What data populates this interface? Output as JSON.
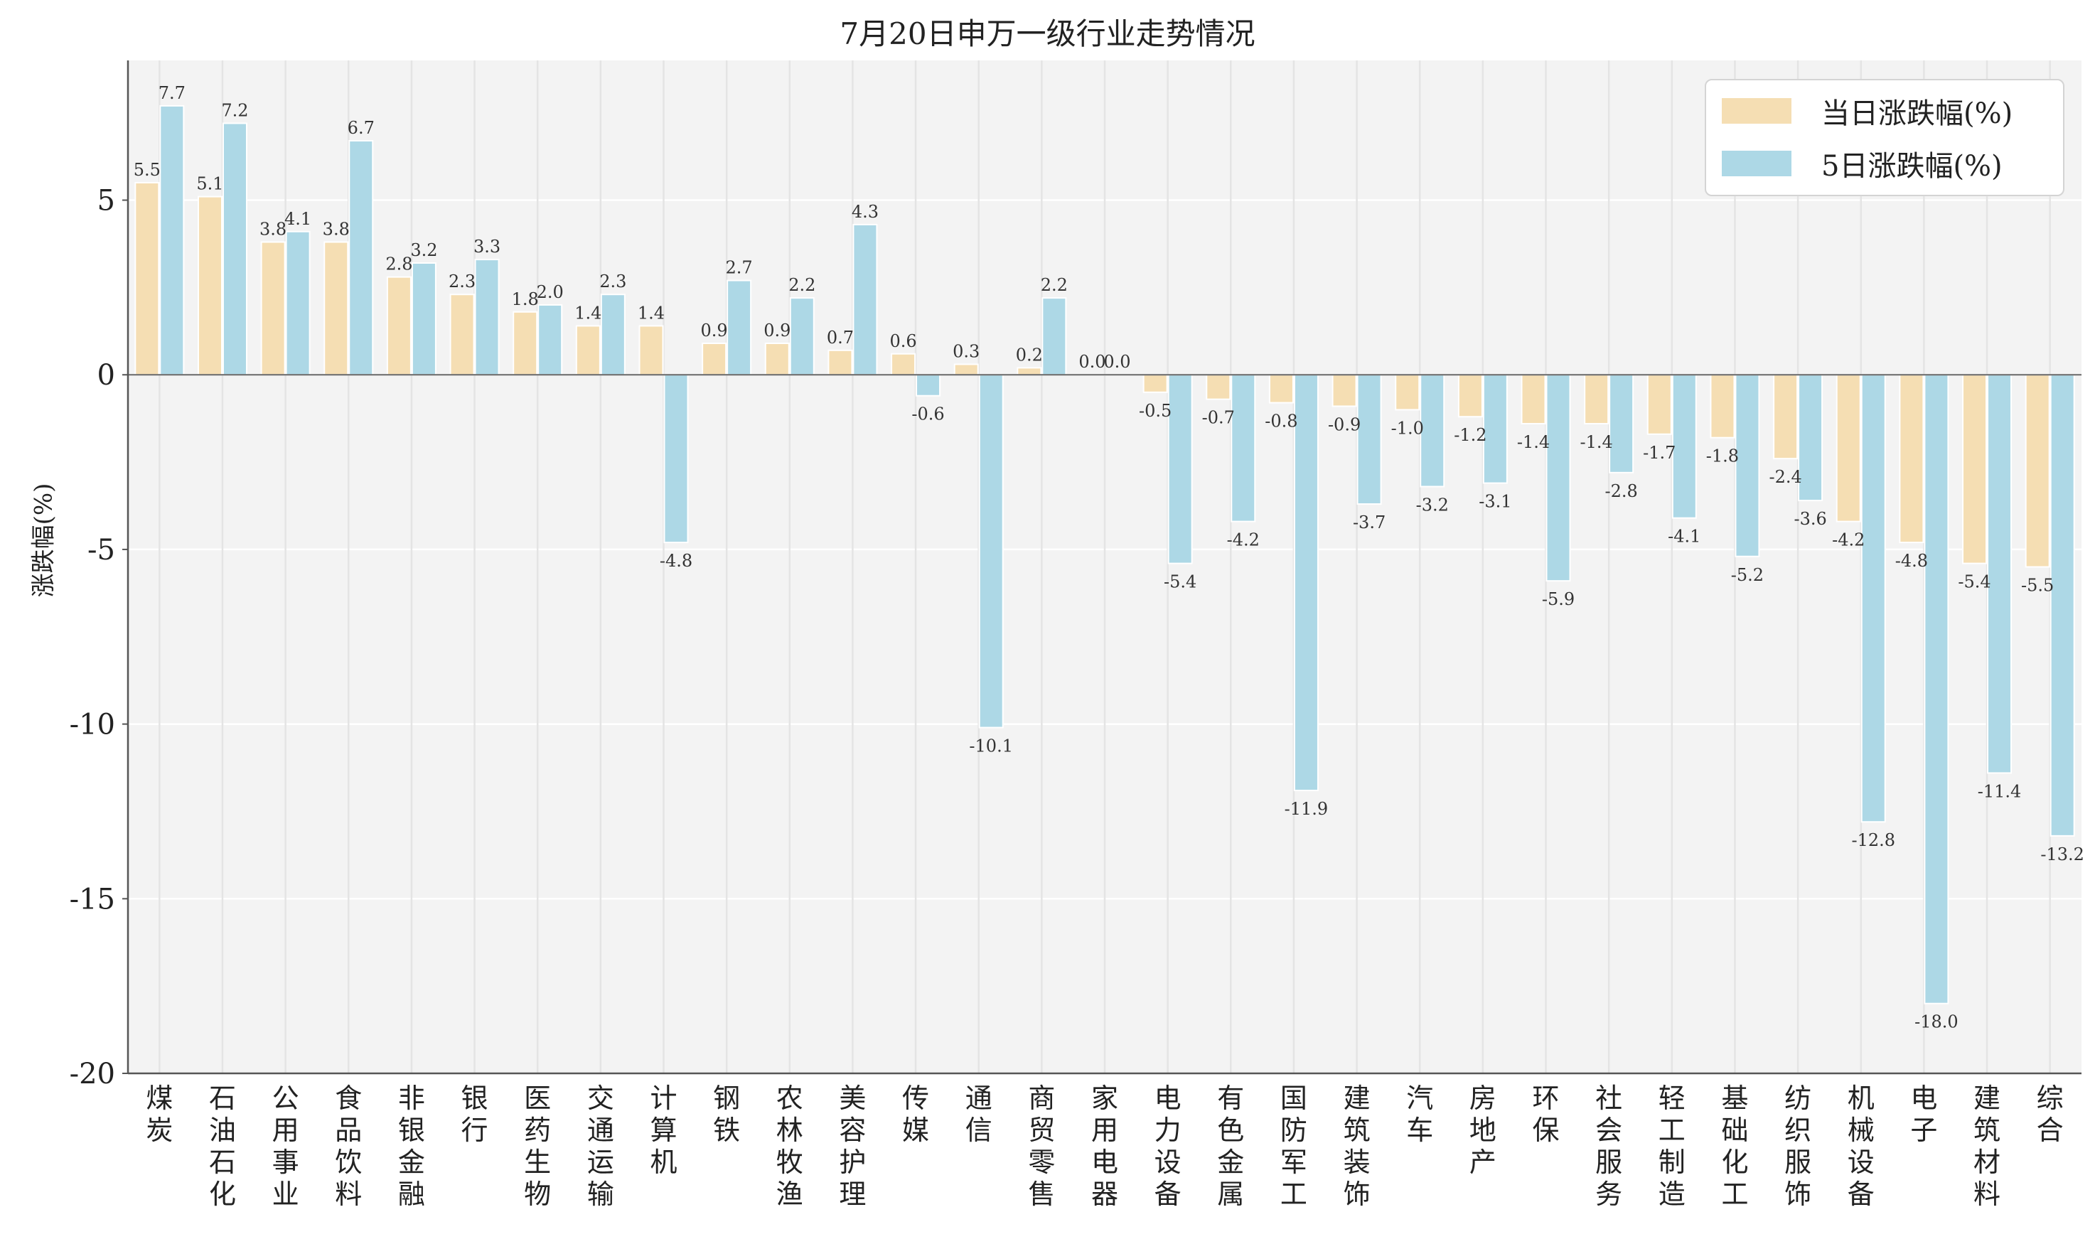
{
  "chart_data": {
    "type": "bar",
    "title": "7月20日申万一级行业走势情况",
    "xlabel": "",
    "ylabel": "涨跌幅(%)",
    "ylim": [
      -20,
      9
    ],
    "yticks": [
      5,
      0,
      -5,
      -10,
      -15,
      -20
    ],
    "grid": true,
    "legend_position": "top-right",
    "categories": [
      "煤炭",
      "石油石化",
      "公用事业",
      "食品饮料",
      "非银金融",
      "银行",
      "医药生物",
      "交通运输",
      "计算机",
      "钢铁",
      "农林牧渔",
      "美容护理",
      "传媒",
      "通信",
      "商贸零售",
      "家用电器",
      "电力设备",
      "有色金属",
      "国防军工",
      "建筑装饰",
      "汽车",
      "房地产",
      "环保",
      "社会服务",
      "轻工制造",
      "基础化工",
      "纺织服饰",
      "机械设备",
      "电子",
      "建筑材料",
      "综合"
    ],
    "series": [
      {
        "name": "当日涨跌幅(%)",
        "color": "#f5deb3",
        "values": [
          5.5,
          5.1,
          3.8,
          3.8,
          2.8,
          2.3,
          1.8,
          1.4,
          1.4,
          0.9,
          0.9,
          0.7,
          0.6,
          0.3,
          0.2,
          0.0,
          -0.5,
          -0.7,
          -0.8,
          -0.9,
          -1.0,
          -1.2,
          -1.4,
          -1.4,
          -1.7,
          -1.8,
          -2.4,
          -4.2,
          -4.8,
          -5.4,
          -5.5
        ]
      },
      {
        "name": "5日涨跌幅(%)",
        "color": "#add8e6",
        "values": [
          7.7,
          7.2,
          4.1,
          6.7,
          3.2,
          3.3,
          2.0,
          2.3,
          -4.8,
          2.7,
          2.2,
          4.3,
          -0.6,
          -10.1,
          2.2,
          0.0,
          -5.4,
          -4.2,
          -11.9,
          -3.7,
          -3.2,
          -3.1,
          -5.9,
          -2.8,
          -4.1,
          -5.2,
          -3.6,
          -12.8,
          -18.0,
          -11.4,
          -13.2
        ]
      }
    ]
  }
}
